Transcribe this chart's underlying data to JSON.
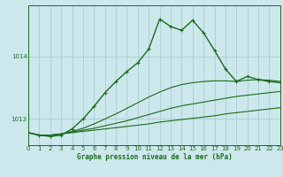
{
  "title": "Graphe pression niveau de la mer (hPa)",
  "bg_color": "#cce8ec",
  "grid_color": "#aaccd0",
  "line_color": "#1a6b1a",
  "xlim": [
    0,
    23
  ],
  "ylim": [
    1012.58,
    1014.82
  ],
  "yticks": [
    1013,
    1014
  ],
  "xticks": [
    0,
    1,
    2,
    3,
    4,
    5,
    6,
    7,
    8,
    9,
    10,
    11,
    12,
    13,
    14,
    15,
    16,
    17,
    18,
    19,
    20,
    21,
    22,
    23
  ],
  "series": [
    {
      "x": [
        0,
        1,
        2,
        3,
        4,
        5,
        6,
        7,
        8,
        9,
        10,
        11,
        12,
        13,
        14,
        15,
        16,
        17,
        18,
        19,
        20,
        21,
        22,
        23
      ],
      "y": [
        1012.78,
        1012.74,
        1012.74,
        1012.76,
        1012.78,
        1012.8,
        1012.82,
        1012.84,
        1012.86,
        1012.88,
        1012.9,
        1012.92,
        1012.95,
        1012.97,
        1012.99,
        1013.01,
        1013.03,
        1013.05,
        1013.08,
        1013.1,
        1013.12,
        1013.14,
        1013.16,
        1013.18
      ],
      "has_markers": false,
      "lw": 0.8
    },
    {
      "x": [
        0,
        1,
        2,
        3,
        4,
        5,
        6,
        7,
        8,
        9,
        10,
        11,
        12,
        13,
        14,
        15,
        16,
        17,
        18,
        19,
        20,
        21,
        22,
        23
      ],
      "y": [
        1012.78,
        1012.74,
        1012.74,
        1012.76,
        1012.79,
        1012.82,
        1012.85,
        1012.89,
        1012.93,
        1012.97,
        1013.02,
        1013.07,
        1013.12,
        1013.17,
        1013.21,
        1013.24,
        1013.27,
        1013.3,
        1013.33,
        1013.36,
        1013.38,
        1013.4,
        1013.42,
        1013.44
      ],
      "has_markers": false,
      "lw": 0.8
    },
    {
      "x": [
        0,
        1,
        2,
        3,
        4,
        5,
        6,
        7,
        8,
        9,
        10,
        11,
        12,
        13,
        14,
        15,
        16,
        17,
        18,
        19,
        20,
        21,
        22,
        23
      ],
      "y": [
        1012.78,
        1012.74,
        1012.74,
        1012.76,
        1012.8,
        1012.85,
        1012.92,
        1013.0,
        1013.08,
        1013.17,
        1013.26,
        1013.35,
        1013.43,
        1013.5,
        1013.55,
        1013.58,
        1013.6,
        1013.61,
        1013.61,
        1013.6,
        1013.62,
        1013.63,
        1013.62,
        1013.6
      ],
      "has_markers": false,
      "lw": 0.8
    },
    {
      "x": [
        0,
        1,
        2,
        3,
        4,
        5,
        6,
        7,
        8,
        9,
        10,
        11,
        12,
        13,
        14,
        15,
        16,
        17,
        18,
        19,
        20,
        21,
        22,
        23
      ],
      "y": [
        1012.78,
        1012.74,
        1012.72,
        1012.74,
        1012.84,
        1013.0,
        1013.2,
        1013.42,
        1013.6,
        1013.76,
        1013.9,
        1014.12,
        1014.6,
        1014.48,
        1014.42,
        1014.58,
        1014.38,
        1014.1,
        1013.8,
        1013.6,
        1013.68,
        1013.63,
        1013.6,
        1013.58
      ],
      "has_markers": true,
      "lw": 1.0
    }
  ]
}
